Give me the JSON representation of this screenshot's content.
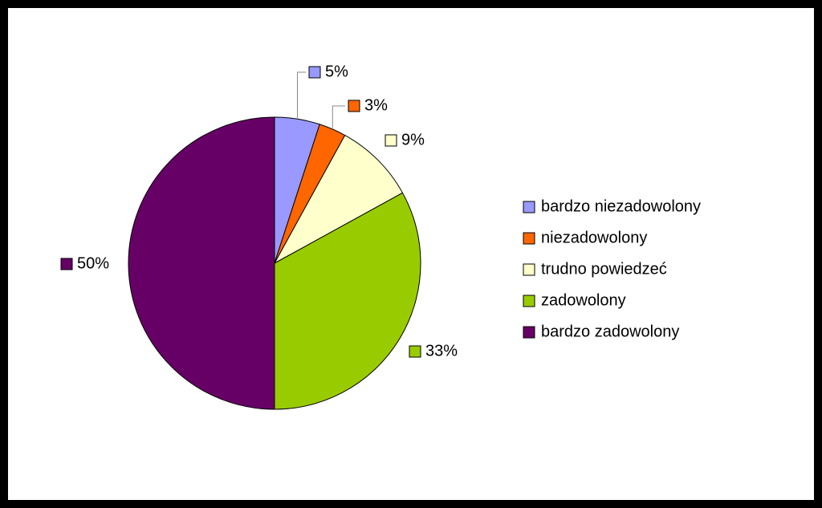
{
  "chart_data": {
    "type": "pie",
    "categories": [
      "bardzo niezadowolony",
      "niezadowolony",
      "trudno powiedzeć",
      "zadowolony",
      "bardzo zadowolony"
    ],
    "values": [
      5,
      3,
      9,
      33,
      50
    ],
    "value_labels": [
      "5%",
      "3%",
      "9%",
      "33%",
      "50%"
    ],
    "colors": [
      "#9999ff",
      "#ff6600",
      "#ffffcc",
      "#99cc00",
      "#660066"
    ],
    "legend": "right"
  }
}
